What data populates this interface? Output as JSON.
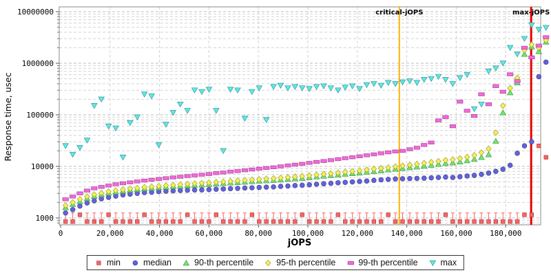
{
  "chart_data": {
    "type": "scatter",
    "title": "",
    "xlabel": "jOPS",
    "ylabel": "Response time, usec",
    "x_axis": {
      "min": 0,
      "max": 194000,
      "ticks": [
        0,
        20000,
        40000,
        60000,
        80000,
        100000,
        120000,
        140000,
        160000,
        180000
      ],
      "tick_labels": [
        "0",
        "20,000",
        "40,000",
        "60,000",
        "80,000",
        "100,000",
        "120,000",
        "140,000",
        "160,000",
        "180,000"
      ]
    },
    "y_axis": {
      "scale": "log",
      "min": 736,
      "max": 12400000,
      "ticks": [
        1000,
        10000,
        100000,
        1000000,
        10000000
      ],
      "tick_labels": [
        "1000",
        "10000",
        "100000",
        "1000000",
        "10000000"
      ]
    },
    "grid": {
      "major_color": "#bdbdbd",
      "minor_color": "#d2d2d2",
      "style": "dashed",
      "log_minor_lines": true,
      "vertical_every": 20000
    },
    "legend_position": "bottom-center",
    "annotations": [
      {
        "label": "critical-jOPS",
        "x": 137000,
        "color": "#FFB300",
        "width": 2
      },
      {
        "label": "max-jOPS",
        "x": 190300,
        "color": "#E60000",
        "width": 3
      }
    ],
    "x": [
      2000,
      4900,
      7800,
      10700,
      13600,
      16500,
      19400,
      22300,
      25200,
      28100,
      31000,
      33900,
      36800,
      39700,
      42600,
      45500,
      48400,
      51300,
      54200,
      57100,
      60000,
      62900,
      65800,
      68700,
      71600,
      74500,
      77400,
      80300,
      83200,
      86100,
      89000,
      91900,
      94800,
      97700,
      100600,
      103500,
      106400,
      109300,
      112200,
      115100,
      118000,
      120900,
      123800,
      126700,
      129600,
      132500,
      135400,
      138300,
      141200,
      144100,
      147000,
      149900,
      152800,
      155700,
      158600,
      161500,
      164400,
      167300,
      170200,
      173100,
      176000,
      178900,
      181800,
      184700,
      187600,
      190500,
      193400,
      196300
    ],
    "series": [
      {
        "name": "min",
        "marker": "square",
        "color": "#FF6262",
        "error_whisker_to": 1250,
        "values": [
          850,
          850,
          1150,
          850,
          850,
          850,
          1150,
          850,
          850,
          850,
          850,
          1150,
          850,
          850,
          850,
          850,
          850,
          1150,
          850,
          850,
          850,
          1150,
          850,
          850,
          850,
          850,
          1150,
          850,
          850,
          850,
          850,
          850,
          850,
          1150,
          850,
          850,
          850,
          850,
          1150,
          850,
          850,
          850,
          850,
          850,
          850,
          1150,
          850,
          850,
          850,
          850,
          850,
          850,
          850,
          1150,
          850,
          850,
          850,
          850,
          850,
          850,
          850,
          850,
          850,
          850,
          1150,
          1150,
          25000,
          15000
        ]
      },
      {
        "name": "median",
        "marker": "circle",
        "color": "#6262DE",
        "values": [
          1250,
          1450,
          1700,
          1950,
          2150,
          2350,
          2500,
          2650,
          2800,
          2900,
          3000,
          3100,
          3150,
          3250,
          3300,
          3350,
          3400,
          3450,
          3500,
          3500,
          3550,
          3600,
          3650,
          3700,
          3750,
          3800,
          3850,
          3900,
          3950,
          4000,
          4100,
          4150,
          4250,
          4300,
          4400,
          4500,
          4600,
          4700,
          4800,
          4900,
          5000,
          5100,
          5200,
          5350,
          5500,
          5600,
          5700,
          5750,
          5800,
          5850,
          5900,
          6000,
          6100,
          6200,
          6100,
          6300,
          6500,
          6700,
          7000,
          7400,
          8000,
          8800,
          10500,
          18000,
          25000,
          30000,
          550000,
          1050000
        ]
      },
      {
        "name": "90-th percentile",
        "marker": "triangle-up",
        "color": "#6FE86F",
        "values": [
          1600,
          1850,
          2100,
          2400,
          2650,
          2850,
          3050,
          3200,
          3350,
          3500,
          3600,
          3700,
          3800,
          3900,
          4000,
          4100,
          4150,
          4250,
          4350,
          4400,
          4500,
          4600,
          4700,
          4800,
          4900,
          5000,
          5100,
          5200,
          5300,
          5400,
          5500,
          5650,
          5800,
          5900,
          6100,
          6300,
          6500,
          6700,
          6900,
          7100,
          7300,
          7500,
          7800,
          8000,
          8300,
          8600,
          8900,
          9200,
          9500,
          9800,
          10200,
          10600,
          11000,
          11500,
          11800,
          12300,
          13000,
          13800,
          15000,
          17000,
          31000,
          110000,
          270000,
          420000,
          1500000,
          2100000,
          1700000,
          2600000
        ]
      },
      {
        "name": "95-th percentile",
        "marker": "diamond",
        "color": "#F2F255",
        "values": [
          1750,
          2000,
          2300,
          2600,
          2850,
          3050,
          3250,
          3400,
          3550,
          3700,
          3800,
          3950,
          4050,
          4150,
          4250,
          4350,
          4450,
          4550,
          4650,
          4750,
          4850,
          4950,
          5050,
          5150,
          5300,
          5400,
          5500,
          5600,
          5750,
          5850,
          6000,
          6150,
          6300,
          6450,
          6650,
          6850,
          7100,
          7300,
          7500,
          7800,
          8000,
          8300,
          8600,
          8900,
          9200,
          9500,
          9900,
          10300,
          10700,
          11100,
          11600,
          12100,
          12600,
          13200,
          13600,
          14300,
          15200,
          16500,
          18500,
          22000,
          45000,
          150000,
          330000,
          520000,
          1800000,
          2300000,
          2000000,
          2800000
        ]
      },
      {
        "name": "99-th percentile",
        "marker": "hbar",
        "color": "#F668DE",
        "values": [
          2300,
          2600,
          3000,
          3400,
          3750,
          4000,
          4250,
          4500,
          4700,
          4900,
          5100,
          5300,
          5500,
          5700,
          5900,
          6100,
          6300,
          6500,
          6700,
          6900,
          7100,
          7400,
          7600,
          7900,
          8100,
          8400,
          8700,
          9000,
          9300,
          9600,
          10000,
          10400,
          10800,
          11200,
          11700,
          12200,
          12700,
          13200,
          13800,
          14400,
          15000,
          15700,
          16400,
          17100,
          17900,
          18700,
          19500,
          20000,
          21500,
          23000,
          26000,
          29000,
          78000,
          90000,
          60000,
          180000,
          120000,
          95000,
          250000,
          160000,
          360000,
          280000,
          610000,
          450000,
          2000000,
          1300000,
          2200000,
          3200000
        ]
      },
      {
        "name": "max",
        "marker": "triangle-down",
        "color": "#5CE8E8",
        "values": [
          25000,
          17000,
          23000,
          32000,
          150000,
          200000,
          60000,
          55000,
          15000,
          70000,
          90000,
          250000,
          230000,
          26000,
          65000,
          110000,
          160000,
          120000,
          300000,
          280000,
          310000,
          120000,
          20000,
          310000,
          300000,
          85000,
          280000,
          330000,
          80000,
          350000,
          370000,
          330000,
          350000,
          330000,
          320000,
          350000,
          360000,
          330000,
          300000,
          340000,
          360000,
          320000,
          380000,
          400000,
          370000,
          420000,
          400000,
          430000,
          450000,
          420000,
          480000,
          500000,
          550000,
          480000,
          400000,
          520000,
          600000,
          130000,
          160000,
          700000,
          800000,
          1000000,
          2000000,
          1500000,
          3000000,
          5500000,
          4500000,
          4900000
        ]
      }
    ]
  }
}
